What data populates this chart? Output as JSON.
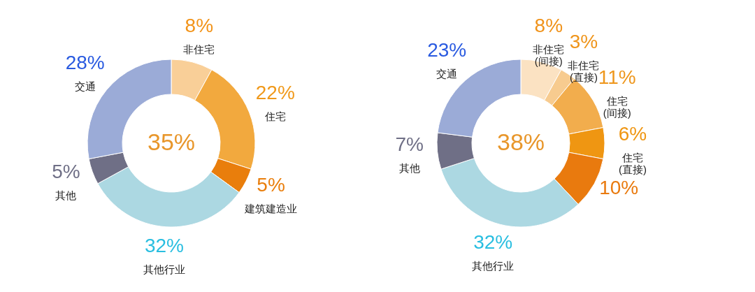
{
  "chart_data": [
    {
      "type": "donut",
      "categories": [
        "非住宅",
        "住宅",
        "建筑建造业",
        "其他行业",
        "其他",
        "交通"
      ],
      "values": [
        8,
        22,
        5,
        32,
        5,
        28
      ],
      "value_labels": [
        "8%",
        "22%",
        "5%",
        "32%",
        "5%",
        "28%"
      ],
      "colors": [
        "#f9cf98",
        "#f2a93e",
        "#e97e0c",
        "#acd8e2",
        "#6f6f86",
        "#9babd7"
      ],
      "annotations": [
        "35%"
      ],
      "legend": false
    },
    {
      "type": "donut",
      "categories": [
        "非住宅(间接)",
        "非住宅(直接)",
        "住宅(间接)",
        "住宅(直接)",
        null,
        "其他行业",
        "其他",
        "交通"
      ],
      "values": [
        8,
        3,
        11,
        6,
        10,
        32,
        7,
        23
      ],
      "value_labels": [
        "8%",
        "3%",
        "11%",
        "6%",
        "10%",
        "32%",
        "7%",
        "23%"
      ],
      "colors": [
        "#fbe2c2",
        "#f7cb8f",
        "#f2ad4d",
        "#ef9612",
        "#e97a0e",
        "#acd8e2",
        "#6f6f86",
        "#9babd7"
      ],
      "annotations": [
        "38%"
      ],
      "legend": false
    }
  ]
}
